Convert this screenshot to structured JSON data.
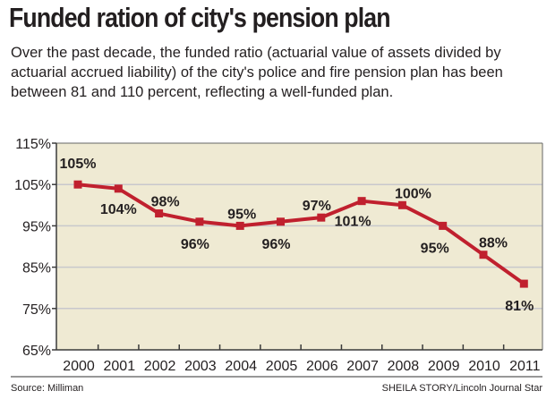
{
  "header": {
    "title": "Funded ration of city's pension plan",
    "subtitle": "Over the past decade, the funded ratio (actuarial value of assets divided by actuarial accrued liability) of the city's police and fire pension plan has been between 81 and 110 percent, reflecting a well-funded plan."
  },
  "footer": {
    "source": "Source: Milliman",
    "credit": "SHEILA STORY/Lincoln Journal Star"
  },
  "chart_data": {
    "type": "line",
    "title": "",
    "xlabel": "",
    "ylabel": "",
    "categories": [
      "2000",
      "2001",
      "2002",
      "2003",
      "2004",
      "2005",
      "2006",
      "2007",
      "2008",
      "2009",
      "2010",
      "2011"
    ],
    "values": [
      105,
      104,
      98,
      96,
      95,
      96,
      97,
      101,
      100,
      95,
      88,
      81
    ],
    "data_labels": [
      "105%",
      "104%",
      "98%",
      "96%",
      "95%",
      "96%",
      "97%",
      "101%",
      "100%",
      "95%",
      "88%",
      "81%"
    ],
    "yticks": [
      115,
      105,
      95,
      85,
      75,
      65
    ],
    "ytick_labels": [
      "115%",
      "105%",
      "95%",
      "85%",
      "75%",
      "65%"
    ],
    "ylim": [
      65,
      115
    ],
    "grid": true,
    "colors": {
      "line": "#c0202e",
      "background": "#efead3",
      "grid": "#c8c8cc",
      "axis": "#3a3a3a"
    }
  }
}
